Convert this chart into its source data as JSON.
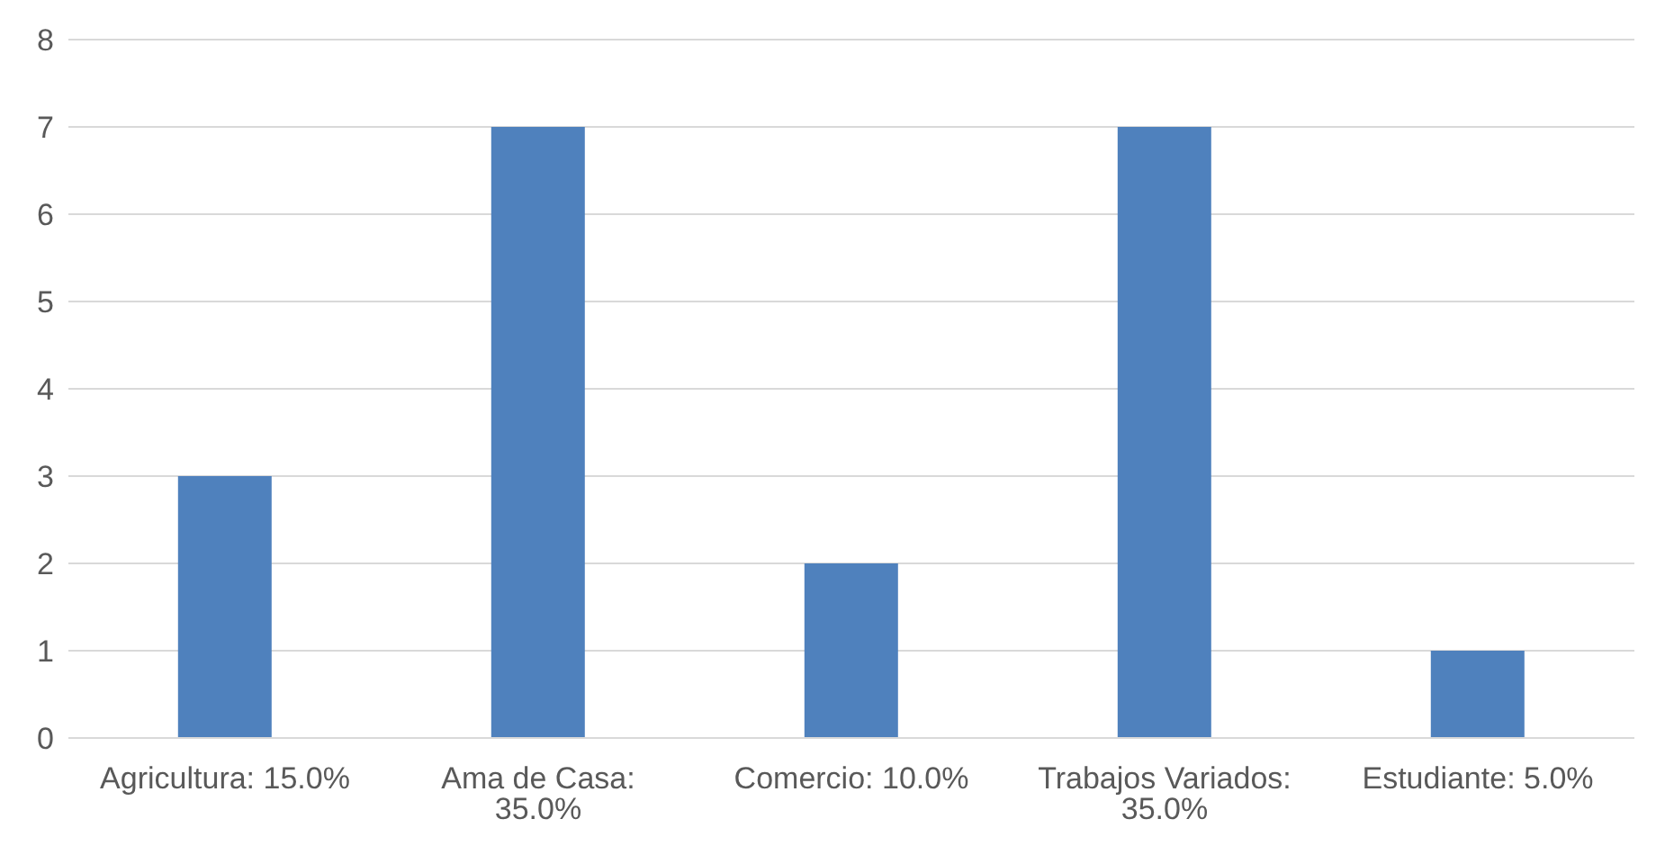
{
  "chart_data": {
    "type": "bar",
    "categories": [
      "Agricultura: 15.0%",
      "Ama de Casa: 35.0%",
      "Comercio: 10.0%",
      "Trabajos Variados: 35.0%",
      "Estudiante: 5.0%"
    ],
    "values": [
      3,
      7,
      2,
      7,
      1
    ],
    "color": "#4f81bd",
    "ylim": [
      0,
      8
    ],
    "yticks": [
      0,
      1,
      2,
      3,
      4,
      5,
      6,
      7,
      8
    ],
    "grid": "y"
  }
}
